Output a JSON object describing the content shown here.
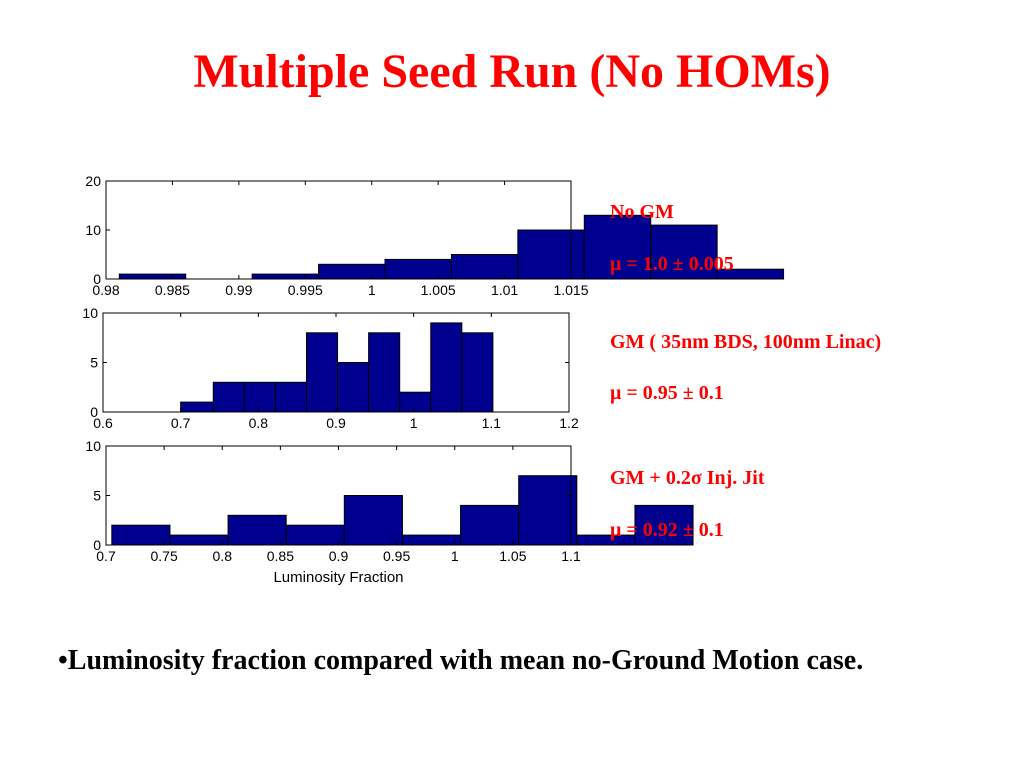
{
  "title": "Multiple Seed Run (No HOMs)",
  "chart_data": [
    {
      "type": "bar",
      "title": "",
      "xlabel": "",
      "ylabel": "",
      "xlim": [
        0.98,
        1.015
      ],
      "ylim": [
        0,
        20
      ],
      "xticks": [
        "0.98",
        "0.985",
        "0.99",
        "0.995",
        "1",
        "1.005",
        "1.01",
        "1.015"
      ],
      "yticks": [
        "0",
        "10",
        "20"
      ],
      "bins": [
        {
          "x0": 0.981,
          "x1": 0.986,
          "value": 1
        },
        {
          "x0": 0.986,
          "x1": 0.991,
          "value": 0
        },
        {
          "x0": 0.991,
          "x1": 0.996,
          "value": 1
        },
        {
          "x0": 0.996,
          "x1": 1.001,
          "value": 3
        },
        {
          "x0": 1.001,
          "x1": 1.006,
          "value": 4
        },
        {
          "x0": 1.006,
          "x1": 1.011,
          "value": 5
        },
        {
          "x0": 1.011,
          "x1": 1.016,
          "value": 10
        },
        {
          "x0": 1.016,
          "x1": 1.021,
          "value": 13
        },
        {
          "x0": 1.021,
          "x1": 1.026,
          "value": 11
        },
        {
          "x0": 1.026,
          "x1": 1.031,
          "value": 2
        }
      ],
      "bar_color": "#00008f"
    },
    {
      "type": "bar",
      "title": "",
      "xlabel": "",
      "ylabel": "",
      "xlim": [
        0.6,
        1.2
      ],
      "ylim": [
        0,
        10
      ],
      "xticks": [
        "0.6",
        "0.7",
        "0.8",
        "0.9",
        "1",
        "1.1",
        "1.2"
      ],
      "yticks": [
        "0",
        "5",
        "10"
      ],
      "bins": [
        {
          "x0": 0.7,
          "x1": 0.742,
          "value": 1
        },
        {
          "x0": 0.742,
          "x1": 0.782,
          "value": 3
        },
        {
          "x0": 0.782,
          "x1": 0.822,
          "value": 3
        },
        {
          "x0": 0.822,
          "x1": 0.862,
          "value": 3
        },
        {
          "x0": 0.862,
          "x1": 0.902,
          "value": 8
        },
        {
          "x0": 0.902,
          "x1": 0.942,
          "value": 5
        },
        {
          "x0": 0.942,
          "x1": 0.982,
          "value": 8
        },
        {
          "x0": 0.982,
          "x1": 1.022,
          "value": 2
        },
        {
          "x0": 1.022,
          "x1": 1.062,
          "value": 9
        },
        {
          "x0": 1.062,
          "x1": 1.102,
          "value": 8
        }
      ],
      "bar_color": "#00008f"
    },
    {
      "type": "bar",
      "title": "",
      "xlabel": "Luminosity Fraction",
      "ylabel": "",
      "xlim": [
        0.7,
        1.1
      ],
      "ylim": [
        0,
        10
      ],
      "xticks": [
        "0.7",
        "0.75",
        "0.8",
        "0.85",
        "0.9",
        "0.95",
        "1",
        "1.05",
        "1.1"
      ],
      "yticks": [
        "0",
        "5",
        "10"
      ],
      "bins": [
        {
          "x0": 0.705,
          "x1": 0.755,
          "value": 2
        },
        {
          "x0": 0.755,
          "x1": 0.805,
          "value": 1
        },
        {
          "x0": 0.805,
          "x1": 0.855,
          "value": 3
        },
        {
          "x0": 0.855,
          "x1": 0.905,
          "value": 2
        },
        {
          "x0": 0.905,
          "x1": 0.955,
          "value": 5
        },
        {
          "x0": 0.955,
          "x1": 1.005,
          "value": 1
        },
        {
          "x0": 1.005,
          "x1": 1.055,
          "value": 4
        },
        {
          "x0": 1.055,
          "x1": 1.105,
          "value": 7
        },
        {
          "x0": 1.105,
          "x1": 1.155,
          "value": 1
        },
        {
          "x0": 1.155,
          "x1": 1.205,
          "value": 4
        }
      ],
      "bar_color": "#00008f"
    }
  ],
  "annotations": [
    {
      "label": "No GM",
      "mean": "μ = 1.0 ± 0.005"
    },
    {
      "label": "GM ( 35nm BDS, 100nm Linac)",
      "mean": "μ = 0.95 ± 0.1"
    },
    {
      "label": "GM + 0.2σ Inj. Jit",
      "mean": "μ = 0.92 ± 0.1"
    }
  ],
  "bullet": "•Luminosity fraction compared with mean no-Ground Motion case."
}
